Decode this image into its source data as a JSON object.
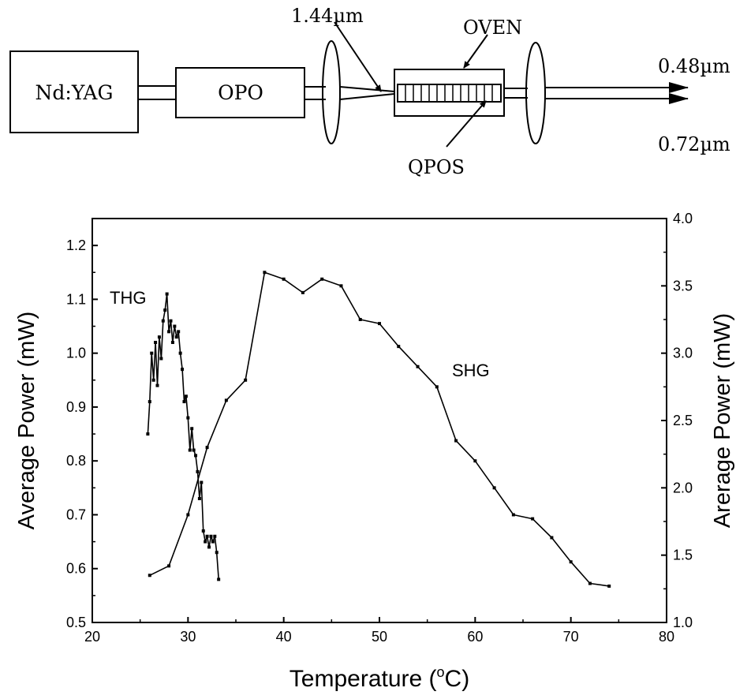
{
  "diagram": {
    "blocks": [
      "Nd:YAG",
      "OPO"
    ],
    "input_wavelength": "1.44µm",
    "oven_label": "OVEN",
    "crystal_label": "QPOS",
    "output_1": "0.48µm",
    "output_2": "0.72µm"
  },
  "chart_data": {
    "type": "line",
    "xlabel": "Temperature (°C)",
    "xlabel_parts": {
      "main": "Temperature (",
      "sup": "o",
      "end": "C)"
    },
    "ylabel_left": "Average Power (mW)",
    "ylabel_right": "Arerage Power (mW)",
    "xlim": [
      20,
      80
    ],
    "ylim_left": [
      0.5,
      1.25
    ],
    "ylim_right": [
      1.0,
      4.0
    ],
    "x_ticks": [
      20,
      30,
      40,
      50,
      60,
      70,
      80
    ],
    "y_left_ticks": [
      "0.5",
      "0.6",
      "0.7",
      "0.8",
      "0.9",
      "1.0",
      "1.1",
      "1.2"
    ],
    "y_right_ticks": [
      "1.0",
      "1.5",
      "2.0",
      "2.5",
      "3.0",
      "3.5",
      "4.0"
    ],
    "grid": false,
    "annotations": [
      "THG",
      "SHG"
    ],
    "series": [
      {
        "name": "THG",
        "axis": "left",
        "x": [
          25.8,
          26.0,
          26.2,
          26.4,
          26.6,
          26.8,
          27.0,
          27.2,
          27.4,
          27.6,
          27.8,
          28.0,
          28.2,
          28.4,
          28.6,
          28.8,
          29.0,
          29.2,
          29.4,
          29.6,
          29.8,
          30.0,
          30.2,
          30.4,
          30.6,
          30.8,
          31.0,
          31.2,
          31.4,
          31.6,
          31.8,
          32.0,
          32.2,
          32.4,
          32.6,
          32.8,
          33.0,
          33.2
        ],
        "y": [
          0.85,
          0.91,
          1.0,
          0.95,
          1.02,
          0.94,
          1.03,
          0.99,
          1.06,
          1.08,
          1.11,
          1.04,
          1.06,
          1.02,
          1.05,
          1.03,
          1.04,
          1.0,
          0.97,
          0.91,
          0.92,
          0.88,
          0.82,
          0.86,
          0.82,
          0.81,
          0.78,
          0.73,
          0.76,
          0.67,
          0.65,
          0.66,
          0.64,
          0.66,
          0.65,
          0.66,
          0.63,
          0.58
        ]
      },
      {
        "name": "SHG",
        "axis": "right",
        "x": [
          26,
          28,
          30,
          32,
          34,
          36,
          38,
          40,
          42,
          44,
          46,
          48,
          50,
          52,
          54,
          56,
          58,
          60,
          62,
          64,
          66,
          68,
          70,
          72,
          74
        ],
        "y": [
          1.35,
          1.42,
          1.8,
          2.3,
          2.65,
          2.8,
          3.6,
          3.55,
          3.45,
          3.55,
          3.5,
          3.25,
          3.22,
          3.05,
          2.9,
          2.75,
          2.35,
          2.2,
          2.0,
          1.8,
          1.77,
          1.63,
          1.45,
          1.29,
          1.27
        ]
      }
    ]
  }
}
